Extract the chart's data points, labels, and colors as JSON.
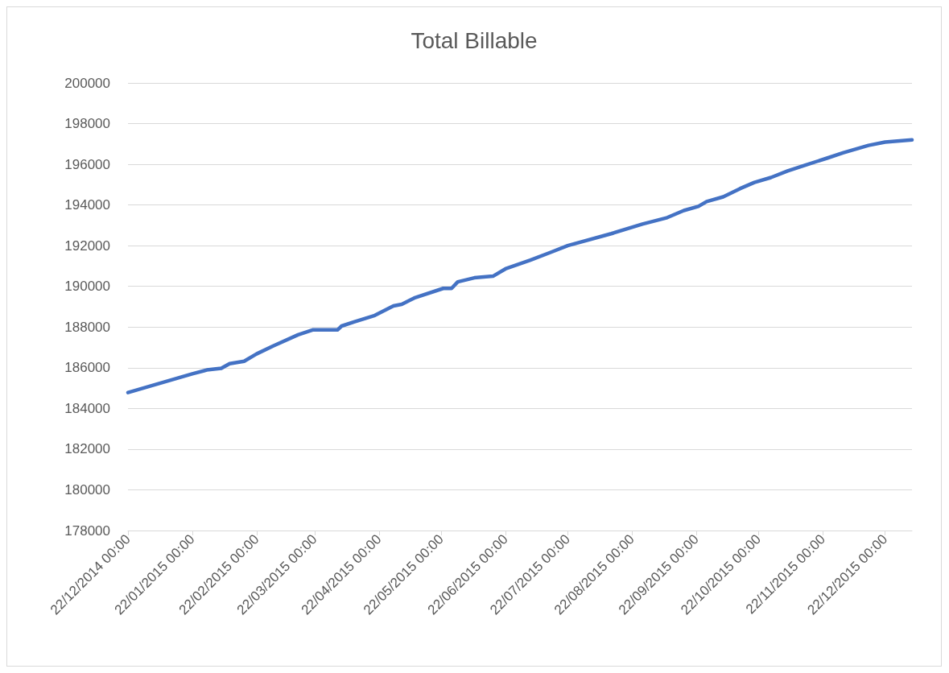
{
  "chart_data": {
    "type": "line",
    "title": "Total Billable",
    "x": [
      "2014-12-22",
      "2015-01-22",
      "2015-01-29",
      "2015-02-05",
      "2015-02-09",
      "2015-02-16",
      "2015-02-22",
      "2015-03-02",
      "2015-03-14",
      "2015-03-21",
      "2015-04-02",
      "2015-04-04",
      "2015-04-10",
      "2015-04-20",
      "2015-04-29",
      "2015-05-03",
      "2015-05-09",
      "2015-05-23",
      "2015-05-27",
      "2015-05-30",
      "2015-06-07",
      "2015-06-16",
      "2015-06-22",
      "2015-07-04",
      "2015-07-14",
      "2015-07-22",
      "2015-08-12",
      "2015-08-27",
      "2015-09-08",
      "2015-09-16",
      "2015-09-23",
      "2015-09-27",
      "2015-10-05",
      "2015-10-13",
      "2015-10-20",
      "2015-10-28",
      "2015-11-05",
      "2015-11-13",
      "2015-11-24",
      "2015-12-02",
      "2015-12-14",
      "2015-12-22",
      "2016-01-04"
    ],
    "series": [
      {
        "color": "#4472c4",
        "values": [
          184780,
          185700,
          185890,
          185970,
          186200,
          186320,
          186680,
          187070,
          187620,
          187860,
          187860,
          188050,
          188250,
          188570,
          189040,
          189120,
          189430,
          189900,
          189900,
          190220,
          190420,
          190500,
          190860,
          191290,
          191680,
          192000,
          192590,
          193060,
          193380,
          193730,
          193930,
          194170,
          194400,
          194800,
          195110,
          195350,
          195670,
          195940,
          196300,
          196570,
          196930,
          197090,
          197200
        ]
      }
    ],
    "xlim": [
      "2014-12-22",
      "2016-01-04"
    ],
    "xticks": [
      {
        "value": "2014-12-22",
        "label": "22/12/2014 00:00"
      },
      {
        "value": "2015-01-22",
        "label": "22/01/2015 00:00"
      },
      {
        "value": "2015-02-22",
        "label": "22/02/2015 00:00"
      },
      {
        "value": "2015-03-22",
        "label": "22/03/2015 00:00"
      },
      {
        "value": "2015-04-22",
        "label": "22/04/2015 00:00"
      },
      {
        "value": "2015-05-22",
        "label": "22/05/2015 00:00"
      },
      {
        "value": "2015-06-22",
        "label": "22/06/2015 00:00"
      },
      {
        "value": "2015-07-22",
        "label": "22/07/2015 00:00"
      },
      {
        "value": "2015-08-22",
        "label": "22/08/2015 00:00"
      },
      {
        "value": "2015-09-22",
        "label": "22/09/2015 00:00"
      },
      {
        "value": "2015-10-22",
        "label": "22/10/2015 00:00"
      },
      {
        "value": "2015-11-22",
        "label": "22/11/2015 00:00"
      },
      {
        "value": "2015-12-22",
        "label": "22/12/2015 00:00"
      }
    ],
    "ylim": [
      178000,
      200000
    ],
    "yticks": [
      178000,
      180000,
      182000,
      184000,
      186000,
      188000,
      190000,
      192000,
      194000,
      196000,
      198000,
      200000
    ],
    "grid": "y",
    "marker": "none",
    "line_style": "solid"
  }
}
